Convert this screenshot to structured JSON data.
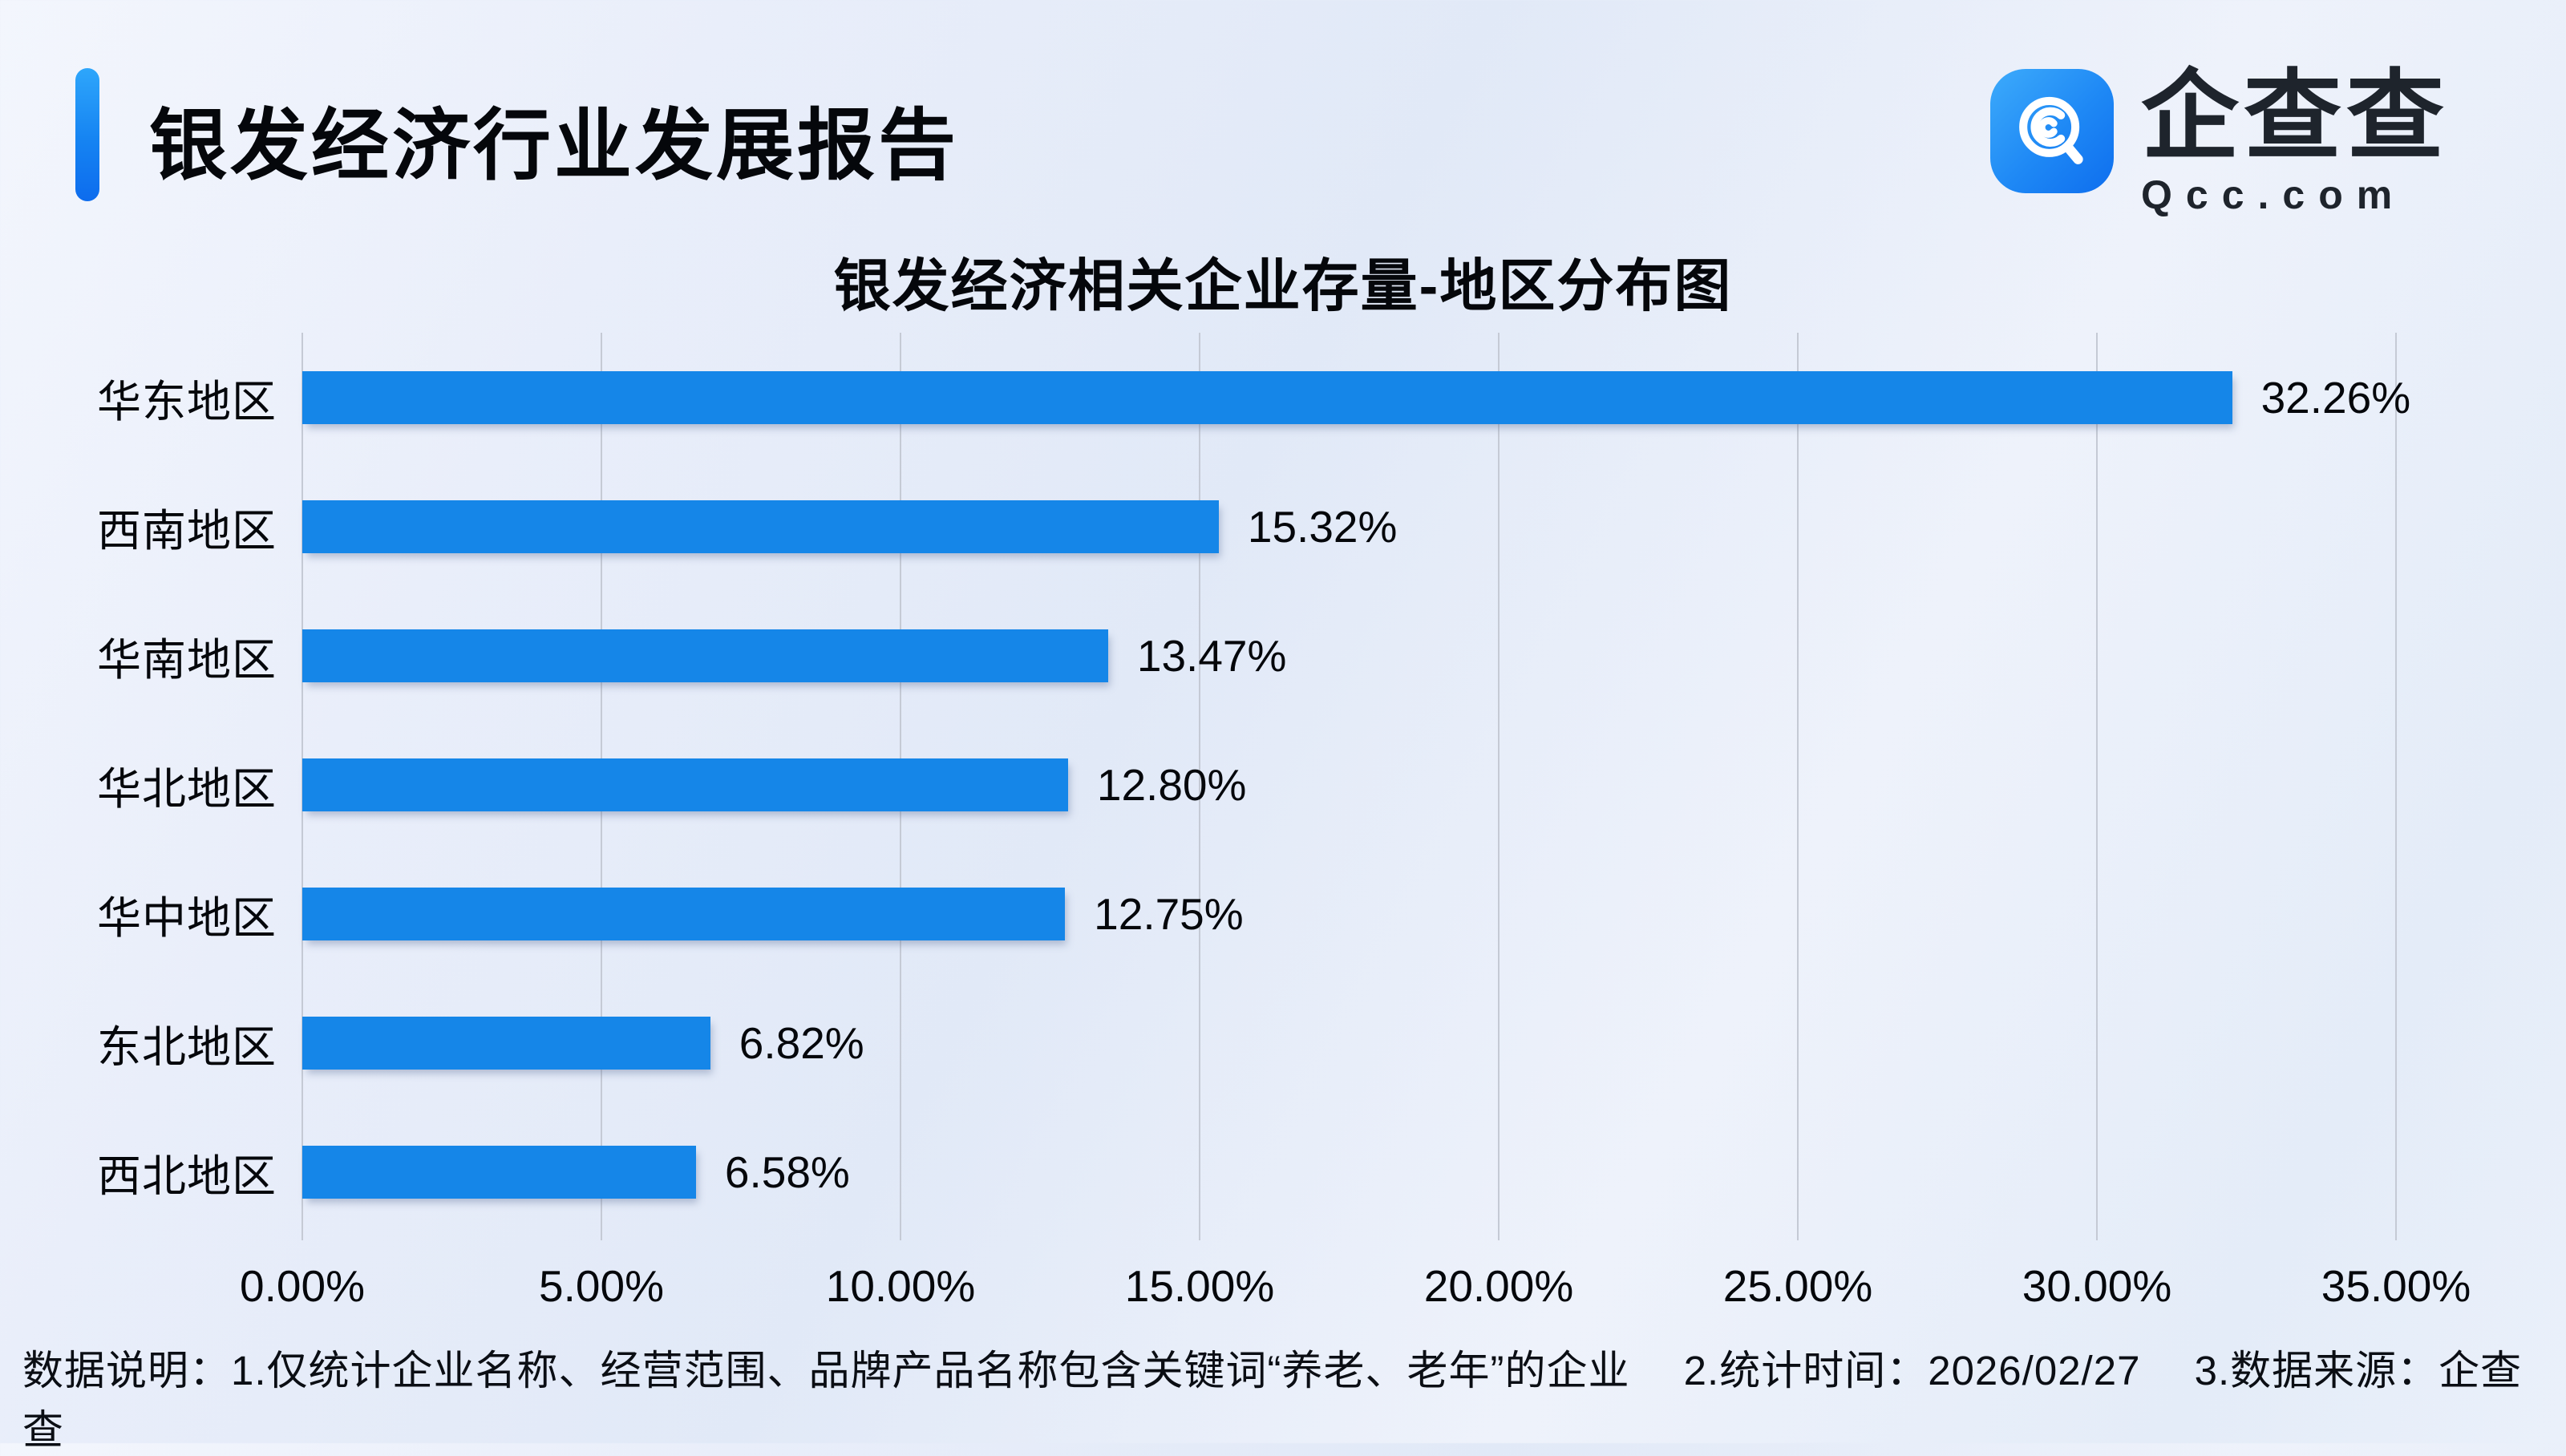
{
  "page": {
    "report_title": "银发经济行业发展报告",
    "footer_note": "数据说明：1.仅统计企业名称、经营范围、品牌产品名称包含关键词“养老、老年”的企业　 2.统计时间：2026/02/27　 3.数据来源：企查查"
  },
  "logo": {
    "brand_cn": "企查查",
    "brand_domain": "Qcc.com"
  },
  "colors": {
    "bar_blue": "#1586e8",
    "accent_top": "#2ea6fb",
    "accent_bottom": "#0d6cee",
    "logo_blue": "#1e88f5",
    "gridline": "#c5cad5",
    "background": "#e9eefa"
  },
  "chart_data": {
    "type": "bar",
    "orientation": "horizontal",
    "title": "银发经济相关企业存量-地区分布图",
    "categories": [
      "华东地区",
      "西南地区",
      "华南地区",
      "华北地区",
      "华中地区",
      "东北地区",
      "西北地区"
    ],
    "values": [
      32.26,
      15.32,
      13.47,
      12.8,
      12.75,
      6.82,
      6.58
    ],
    "value_labels": [
      "32.26%",
      "15.32%",
      "13.47%",
      "12.80%",
      "12.75%",
      "6.82%",
      "6.58%"
    ],
    "x_ticks": [
      "0.00%",
      "5.00%",
      "10.00%",
      "15.00%",
      "20.00%",
      "25.00%",
      "30.00%",
      "35.00%"
    ],
    "xlabel": "",
    "ylabel": "",
    "xlim": [
      0,
      35
    ],
    "grid": "vertical-only",
    "legend": "none",
    "bar_color": "#1586e8"
  }
}
